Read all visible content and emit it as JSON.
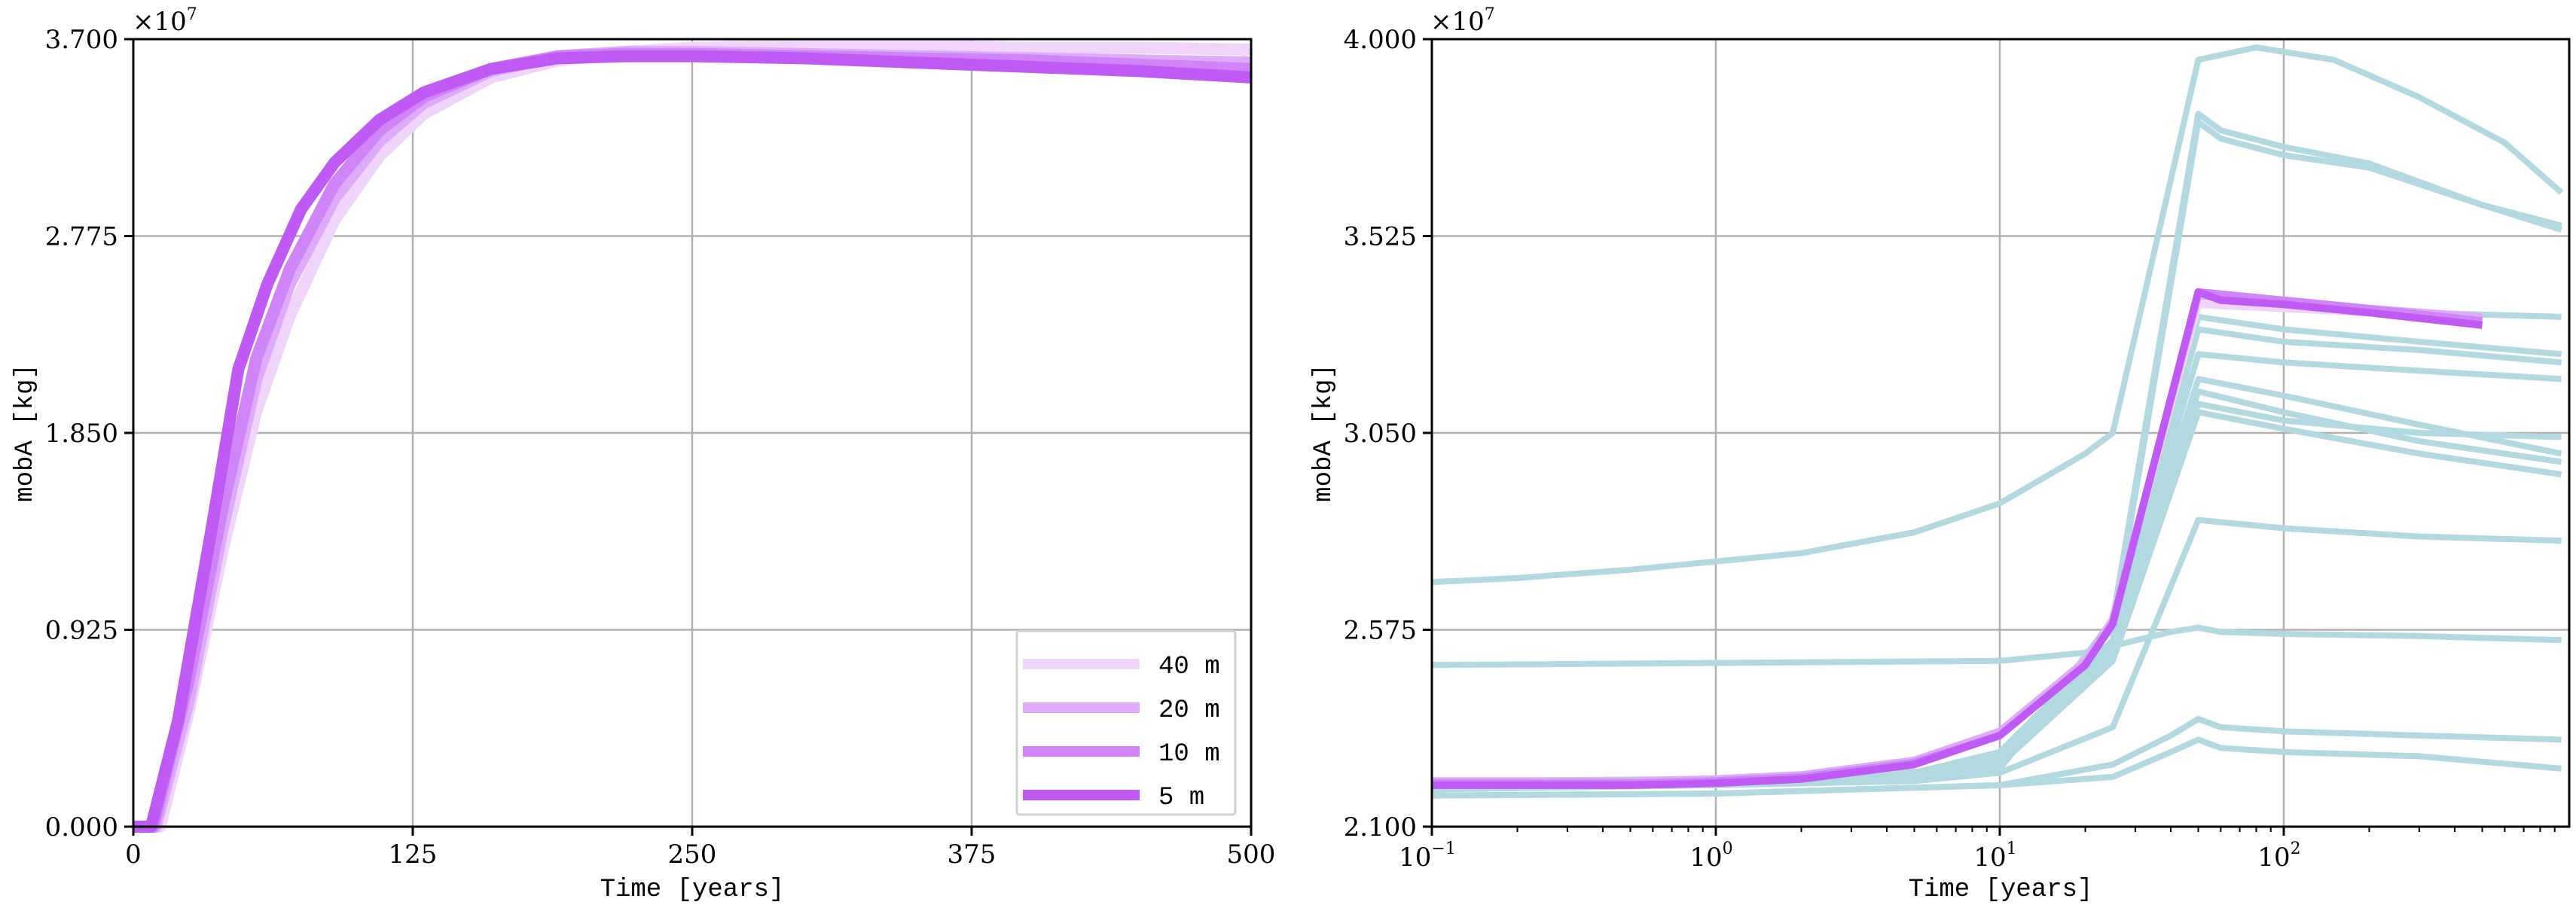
{
  "chart_data": [
    {
      "type": "line",
      "title": "",
      "xlabel": "Time [years]",
      "ylabel": "mobA [kg]",
      "y_scale_note": "×10^7",
      "x_scale": "linear",
      "xlim": [
        0,
        500
      ],
      "ylim": [
        0.0,
        3.7
      ],
      "xticks": [
        0,
        125,
        250,
        375,
        500
      ],
      "xtick_labels": [
        "0",
        "125",
        "250",
        "375",
        "500"
      ],
      "yticks": [
        0.0,
        0.925,
        1.85,
        2.775,
        3.7
      ],
      "ytick_labels": [
        "0.000",
        "0.925",
        "1.850",
        "2.775",
        "3.700"
      ],
      "grid": true,
      "legend_position": "lower right",
      "series": [
        {
          "name": "40 m",
          "color": "#f0d5fb",
          "x": [
            0,
            12,
            25,
            40,
            55,
            70,
            90,
            110,
            130,
            160,
            190,
            220,
            250,
            300,
            350,
            400,
            450,
            500
          ],
          "values": [
            0.0,
            0.0,
            0.55,
            1.3,
            1.95,
            2.4,
            2.85,
            3.15,
            3.35,
            3.52,
            3.6,
            3.64,
            3.66,
            3.67,
            3.67,
            3.66,
            3.66,
            3.65
          ]
        },
        {
          "name": "20 m",
          "color": "#deaafa",
          "x": [
            0,
            10,
            25,
            40,
            55,
            70,
            90,
            110,
            130,
            160,
            190,
            220,
            250,
            300,
            350,
            400,
            450,
            500
          ],
          "values": [
            0.0,
            0.0,
            0.6,
            1.4,
            2.1,
            2.55,
            2.95,
            3.22,
            3.4,
            3.55,
            3.62,
            3.64,
            3.64,
            3.63,
            3.62,
            3.61,
            3.6,
            3.59
          ]
        },
        {
          "name": "10 m",
          "color": "#cf84f7",
          "x": [
            0,
            9,
            25,
            40,
            55,
            70,
            90,
            110,
            130,
            160,
            190,
            220,
            250,
            300,
            350,
            400,
            450,
            500
          ],
          "values": [
            0.0,
            0.0,
            0.7,
            1.5,
            2.2,
            2.62,
            3.02,
            3.27,
            3.43,
            3.56,
            3.62,
            3.63,
            3.63,
            3.62,
            3.61,
            3.6,
            3.58,
            3.56
          ]
        },
        {
          "name": "5 m",
          "color": "#bf5af5",
          "x": [
            0,
            8,
            20,
            35,
            47,
            60,
            75,
            90,
            110,
            130,
            160,
            190,
            220,
            250,
            300,
            350,
            400,
            450,
            500
          ],
          "values": [
            0.0,
            0.0,
            0.5,
            1.4,
            2.15,
            2.55,
            2.9,
            3.12,
            3.32,
            3.45,
            3.56,
            3.61,
            3.62,
            3.62,
            3.61,
            3.59,
            3.57,
            3.55,
            3.52
          ]
        }
      ]
    },
    {
      "type": "line",
      "title": "",
      "xlabel": "Time [years]",
      "ylabel": "mobA [kg]",
      "y_scale_note": "×10^7",
      "x_scale": "log",
      "xlim": [
        0.1,
        950
      ],
      "ylim": [
        2.1,
        4.0
      ],
      "xticks": [
        0.1,
        1,
        10,
        100
      ],
      "xtick_labels": [
        "10^-1",
        "10^0",
        "10^1",
        "10^2"
      ],
      "yticks": [
        2.1,
        2.575,
        3.05,
        3.525,
        4.0
      ],
      "ytick_labels": [
        "2.100",
        "2.575",
        "3.050",
        "3.525",
        "4.000"
      ],
      "grid": true,
      "background_series_color": "#b2d8e0",
      "background_series": [
        {
          "x": [
            0.1,
            0.2,
            0.5,
            1,
            2,
            5,
            10,
            20,
            25,
            50,
            80,
            150,
            300,
            600,
            950
          ],
          "values": [
            2.69,
            2.7,
            2.72,
            2.74,
            2.76,
            2.81,
            2.88,
            3.0,
            3.05,
            3.95,
            3.98,
            3.95,
            3.86,
            3.75,
            3.63
          ]
        },
        {
          "x": [
            0.1,
            1,
            10,
            25,
            50,
            60,
            100,
            200,
            500,
            950
          ],
          "values": [
            2.21,
            2.215,
            2.24,
            2.6,
            3.82,
            3.78,
            3.74,
            3.7,
            3.6,
            3.54
          ]
        },
        {
          "x": [
            0.1,
            1,
            10,
            25,
            50,
            60,
            100,
            200,
            500,
            950
          ],
          "values": [
            2.21,
            2.215,
            2.24,
            2.58,
            3.8,
            3.76,
            3.72,
            3.69,
            3.6,
            3.55
          ]
        },
        {
          "x": [
            0.1,
            1,
            5,
            10,
            25,
            50,
            100,
            300,
            950
          ],
          "values": [
            2.2,
            2.205,
            2.23,
            2.28,
            2.55,
            3.39,
            3.37,
            3.34,
            3.33
          ]
        },
        {
          "x": [
            0.1,
            1,
            5,
            10,
            25,
            50,
            100,
            300,
            950
          ],
          "values": [
            2.2,
            2.205,
            2.23,
            2.28,
            2.55,
            3.33,
            3.3,
            3.27,
            3.24
          ]
        },
        {
          "x": [
            0.1,
            1,
            5,
            10,
            25,
            50,
            100,
            300,
            950
          ],
          "values": [
            2.2,
            2.205,
            2.23,
            2.28,
            2.55,
            3.3,
            3.27,
            3.25,
            3.22
          ]
        },
        {
          "x": [
            0.1,
            1,
            5,
            10,
            25,
            50,
            100,
            300,
            950
          ],
          "values": [
            2.2,
            2.205,
            2.23,
            2.27,
            2.54,
            3.24,
            3.22,
            3.2,
            3.18
          ]
        },
        {
          "x": [
            0.1,
            1,
            5,
            10,
            25,
            50,
            100,
            300,
            950
          ],
          "values": [
            2.2,
            2.205,
            2.22,
            2.26,
            2.52,
            3.18,
            3.14,
            3.07,
            3.0
          ]
        },
        {
          "x": [
            0.1,
            1,
            5,
            10,
            25,
            50,
            100,
            300,
            950
          ],
          "values": [
            2.2,
            2.205,
            2.22,
            2.26,
            2.52,
            3.15,
            3.1,
            3.03,
            2.98
          ]
        },
        {
          "x": [
            0.1,
            1,
            5,
            10,
            25,
            50,
            100,
            300,
            950
          ],
          "values": [
            2.2,
            2.205,
            2.22,
            2.26,
            2.52,
            3.12,
            3.08,
            3.05,
            3.04
          ]
        },
        {
          "x": [
            0.1,
            1,
            5,
            10,
            25,
            50,
            100,
            300,
            950
          ],
          "values": [
            2.2,
            2.205,
            2.22,
            2.25,
            2.5,
            3.1,
            3.06,
            3.0,
            2.95
          ]
        },
        {
          "x": [
            0.1,
            1,
            5,
            10,
            25,
            50,
            100,
            300,
            950
          ],
          "values": [
            2.19,
            2.2,
            2.21,
            2.23,
            2.34,
            2.84,
            2.82,
            2.8,
            2.79
          ]
        },
        {
          "x": [
            0.1,
            1,
            10,
            20,
            40,
            50,
            60,
            100,
            300,
            950
          ],
          "values": [
            2.49,
            2.495,
            2.5,
            2.52,
            2.57,
            2.58,
            2.57,
            2.565,
            2.56,
            2.55
          ]
        },
        {
          "x": [
            0.1,
            1,
            10,
            25,
            40,
            50,
            60,
            100,
            300,
            950
          ],
          "values": [
            2.175,
            2.18,
            2.2,
            2.25,
            2.32,
            2.36,
            2.34,
            2.33,
            2.32,
            2.31
          ]
        },
        {
          "x": [
            0.1,
            1,
            10,
            25,
            40,
            50,
            60,
            100,
            300,
            950
          ],
          "values": [
            2.175,
            2.18,
            2.2,
            2.22,
            2.28,
            2.31,
            2.29,
            2.28,
            2.27,
            2.24
          ]
        }
      ],
      "series": [
        {
          "name": "40 m",
          "color": "#f0d5fb",
          "x": [
            0.1,
            0.5,
            1,
            2,
            5,
            10,
            20,
            25,
            50,
            100,
            200,
            500
          ],
          "values": [
            2.21,
            2.21,
            2.215,
            2.225,
            2.26,
            2.33,
            2.5,
            2.6,
            3.36,
            3.35,
            3.34,
            3.33
          ]
        },
        {
          "name": "20 m",
          "color": "#deaafa",
          "x": [
            0.1,
            0.5,
            1,
            2,
            5,
            10,
            20,
            25,
            50,
            100,
            200,
            500
          ],
          "values": [
            2.21,
            2.21,
            2.215,
            2.225,
            2.26,
            2.33,
            2.5,
            2.6,
            3.38,
            3.37,
            3.35,
            3.33
          ]
        },
        {
          "name": "10 m",
          "color": "#cf84f7",
          "x": [
            0.1,
            0.5,
            1,
            2,
            5,
            10,
            20,
            25,
            50,
            100,
            200,
            500
          ],
          "values": [
            2.205,
            2.205,
            2.21,
            2.22,
            2.255,
            2.32,
            2.49,
            2.59,
            3.39,
            3.37,
            3.35,
            3.32
          ]
        },
        {
          "name": "5 m",
          "color": "#bf5af5",
          "x": [
            0.1,
            0.5,
            1,
            2,
            5,
            10,
            20,
            25,
            50,
            60,
            100,
            200,
            500
          ],
          "values": [
            2.2,
            2.2,
            2.205,
            2.215,
            2.25,
            2.32,
            2.49,
            2.59,
            3.39,
            3.37,
            3.36,
            3.34,
            3.31
          ]
        }
      ]
    }
  ],
  "left_plot": {
    "y_multiplier": "×10",
    "y_multiplier_exp": "7",
    "ylabel": "mobA [kg]",
    "xlabel": "Time [years]",
    "yticks": [
      "3.700",
      "2.775",
      "1.850",
      "0.925",
      "0.000"
    ],
    "xticks": [
      "0",
      "125",
      "250",
      "375",
      "500"
    ],
    "legend": [
      {
        "label": "40 m",
        "color": "#f0d5fb"
      },
      {
        "label": "20 m",
        "color": "#deaafa"
      },
      {
        "label": "10 m",
        "color": "#cf84f7"
      },
      {
        "label": "5 m",
        "color": "#bf5af5"
      }
    ]
  },
  "right_plot": {
    "y_multiplier": "×10",
    "y_multiplier_exp": "7",
    "ylabel": "mobA [kg]",
    "xlabel": "Time [years]",
    "yticks": [
      "4.000",
      "3.525",
      "3.050",
      "2.575",
      "2.100"
    ],
    "xticks": [
      {
        "base": "10",
        "exp": "−1"
      },
      {
        "base": "10",
        "exp": "0"
      },
      {
        "base": "10",
        "exp": "1"
      },
      {
        "base": "10",
        "exp": "2"
      }
    ]
  }
}
